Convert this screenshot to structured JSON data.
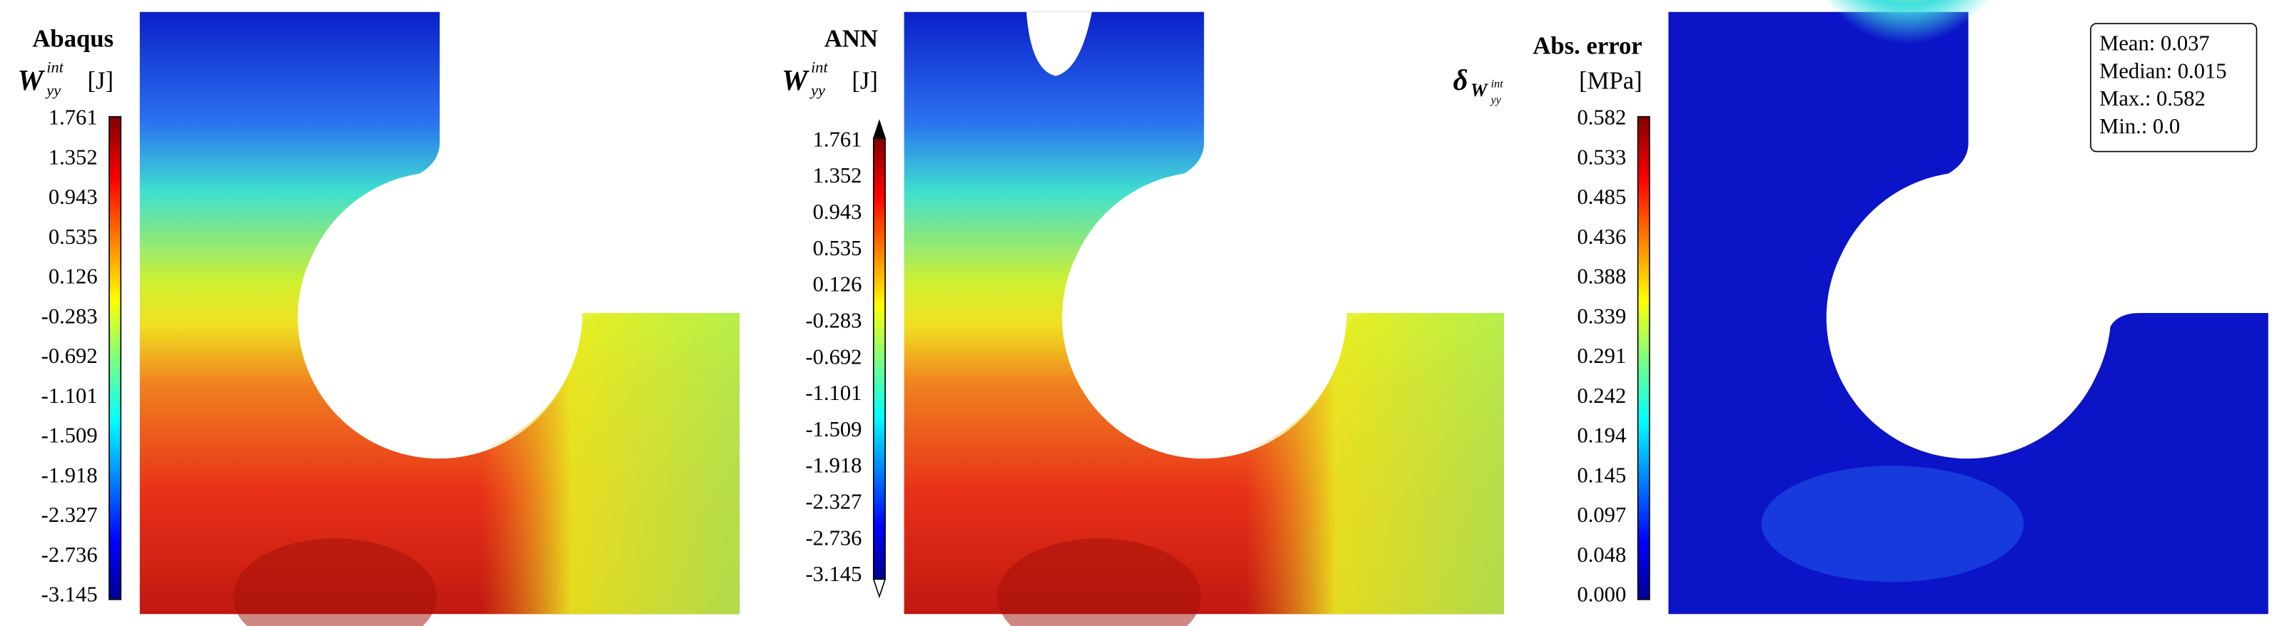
{
  "panels": [
    {
      "title": "Abaqus",
      "symbol": "W",
      "sup": "int",
      "sub": "yy",
      "unit": "[J]",
      "colorbar": [
        "1.761",
        "1.352",
        "0.943",
        "0.535",
        "0.126",
        "-0.283",
        "-0.692",
        "-1.101",
        "-1.509",
        "-1.918",
        "-2.327",
        "-2.736",
        "-3.145"
      ]
    },
    {
      "title": "ANN",
      "symbol": "W",
      "sup": "int",
      "sub": "yy",
      "unit": "[J]",
      "colorbar": [
        "1.761",
        "1.352",
        "0.943",
        "0.535",
        "0.126",
        "-0.283",
        "-0.692",
        "-1.101",
        "-1.509",
        "-1.918",
        "-2.327",
        "-2.736",
        "-3.145"
      ]
    },
    {
      "title": "Abs. error",
      "symbol": "δ",
      "sub_symbol": "W",
      "sup": "int",
      "sub": "yy",
      "unit": "[MPa]",
      "colorbar": [
        "0.582",
        "0.533",
        "0.485",
        "0.436",
        "0.388",
        "0.339",
        "0.291",
        "0.242",
        "0.194",
        "0.145",
        "0.097",
        "0.048",
        "0.000"
      ]
    }
  ],
  "stats": [
    "Mean: 0.037",
    "Median: 0.015",
    "Max.: 0.582",
    "Min.: 0.0"
  ]
}
